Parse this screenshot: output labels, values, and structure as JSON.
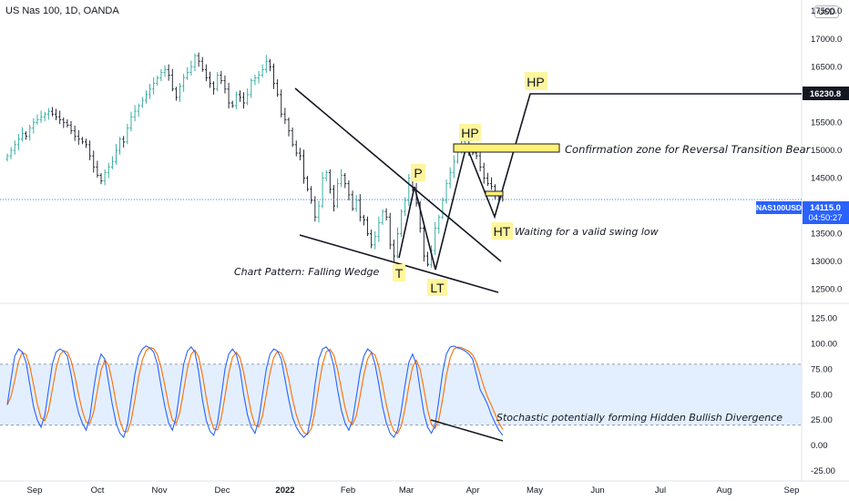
{
  "header": {
    "symbol_title": "US Nas 100, 1D, OANDA",
    "currency": "USD"
  },
  "chart_data": {
    "type": "candlestick",
    "instrument": "NAS100USD",
    "price_axis": {
      "ylim": [
        12250,
        17700
      ],
      "ticks": [
        "17500.0",
        "17000.0",
        "16500.0",
        "16000.0",
        "15500.0",
        "15000.0",
        "14500.0",
        "14000.0",
        "13500.0",
        "13000.0",
        "12500.0"
      ]
    },
    "price_tags": {
      "target": {
        "value": 16230.8,
        "label": "16230.8"
      },
      "current": {
        "symbol": "NAS100USD",
        "value": 14115.0,
        "label": "14115.0",
        "countdown": "04:50:27"
      }
    },
    "x_axis": {
      "ticks": [
        "Sep",
        "Oct",
        "Nov",
        "Dec",
        "2022",
        "Feb",
        "Mar",
        "Apr",
        "May",
        "Jun",
        "Jul",
        "Aug",
        "Sep"
      ]
    },
    "candles_close": [
      14900,
      15000,
      15100,
      15200,
      15300,
      15250,
      15400,
      15500,
      15550,
      15600,
      15650,
      15700,
      15650,
      15600,
      15550,
      15500,
      15450,
      15350,
      15250,
      15200,
      15150,
      15100,
      14900,
      14700,
      14550,
      14450,
      14600,
      14700,
      14800,
      15000,
      15200,
      15150,
      15400,
      15600,
      15700,
      15800,
      15900,
      16000,
      16100,
      16200,
      16300,
      16400,
      16450,
      16350,
      16100,
      15950,
      16150,
      16300,
      16400,
      16500,
      16700,
      16600,
      16450,
      16300,
      16200,
      16100,
      16350,
      16250,
      16100,
      15850,
      15800,
      16000,
      15950,
      15850,
      16000,
      16250,
      16300,
      16350,
      16450,
      16600,
      16500,
      16200,
      16000,
      15650,
      15550,
      15350,
      15100,
      14950,
      14900,
      14500,
      14300,
      14100,
      13800,
      14000,
      14500,
      14600,
      14300,
      14000,
      14400,
      14550,
      14400,
      14200,
      13950,
      14100,
      13800,
      13750,
      13500,
      13300,
      13450,
      13700,
      13900,
      13800,
      13300,
      13100,
      13500,
      13900,
      14100,
      14500,
      14300,
      14050,
      13600,
      13100,
      12950,
      13200,
      13600,
      13800,
      14100,
      14400,
      14600,
      14800,
      15000,
      15150,
      15200,
      15000,
      14950,
      14900,
      14700,
      14500,
      14400,
      14350,
      14200,
      14150,
      14115
    ],
    "overlays": {
      "pattern_points": [
        {
          "label": "T",
          "date_index": 99,
          "price": 13100
        },
        {
          "label": "P",
          "date_index": 105,
          "price": 14500
        },
        {
          "label": "LT",
          "date_index": 111,
          "price": 12950
        },
        {
          "label": "HP",
          "date_index": 120,
          "price": 15250
        },
        {
          "label": "HT",
          "date_index": 129,
          "price": 13800
        },
        {
          "label": "HP",
          "price": 16230.8
        }
      ],
      "annotations": [
        "Chart Pattern: Falling Wedge",
        "Confirmation zone for Reversal Transition Bear",
        "Waiting for a valid swing low"
      ],
      "confirmation_zone": {
        "price_from": 15050,
        "price_to": 15180
      }
    },
    "oscillator": {
      "name": "Stochastic",
      "ylim": [
        -35,
        140
      ],
      "ticks": [
        "125.00",
        "100.00",
        "75.00",
        "50.00",
        "25.00",
        "0.00",
        "-25.00"
      ],
      "band_upper": 80,
      "band_lower": 20,
      "k_values": [
        40,
        65,
        88,
        95,
        92,
        82,
        60,
        38,
        25,
        18,
        30,
        55,
        80,
        92,
        95,
        93,
        88,
        70,
        48,
        32,
        22,
        15,
        28,
        55,
        78,
        90,
        85,
        62,
        40,
        22,
        12,
        8,
        20,
        45,
        70,
        88,
        95,
        98,
        96,
        92,
        80,
        58,
        38,
        22,
        15,
        28,
        55,
        80,
        93,
        97,
        92,
        72,
        45,
        25,
        14,
        10,
        22,
        48,
        75,
        90,
        95,
        90,
        75,
        50,
        30,
        18,
        12,
        25,
        50,
        75,
        90,
        95,
        93,
        85,
        65,
        45,
        28,
        18,
        12,
        8,
        12,
        30,
        60,
        85,
        95,
        97,
        92,
        78,
        55,
        35,
        22,
        15,
        25,
        48,
        72,
        88,
        95,
        92,
        80,
        60,
        38,
        22,
        12,
        8,
        15,
        35,
        60,
        82,
        90,
        80,
        55,
        32,
        18,
        12,
        20,
        45,
        72,
        90,
        97,
        98,
        96,
        95,
        93,
        90,
        85,
        70,
        55,
        48,
        40,
        30,
        22,
        15,
        10
      ],
      "annotation": "Stochastic potentially forming Hidden Bullish Divergence"
    }
  },
  "colors": {
    "up": "#26a69a",
    "down": "#131722",
    "k_line": "#2962ff",
    "d_line": "#ff6d00",
    "band_fill": "#e3efff",
    "label_yellow": "#fff59d",
    "zone_yellow": "#fff176",
    "price_tag_current": "#2962ff",
    "price_tag_target": "#131722"
  }
}
